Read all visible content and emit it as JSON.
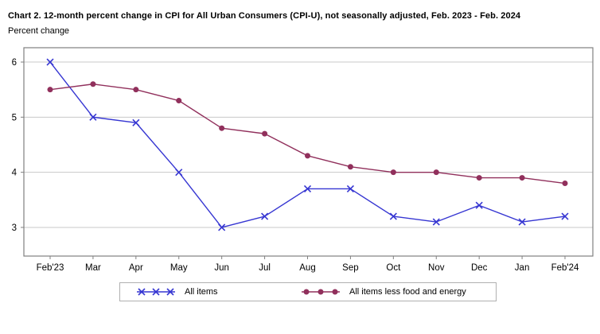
{
  "title": "Chart 2. 12-month percent change in CPI for All Urban Consumers (CPI-U), not seasonally adjusted, Feb. 2023 - Feb. 2024",
  "subtitle": "Percent change",
  "colors": {
    "all_items_line": "#3636d2",
    "core_line": "#91305c",
    "gridline": "#c8c8c8",
    "plot_border": "#808080",
    "legend_border": "#b0b0b0",
    "text": "#000000",
    "background": "#ffffff"
  },
  "chart_data": {
    "type": "line",
    "title": "Chart 2. 12-month percent change in CPI for All Urban Consumers (CPI-U), not seasonally adjusted, Feb. 2023 - Feb. 2024",
    "xlabel": "",
    "ylabel": "Percent change",
    "categories": [
      "Feb'23",
      "Mar",
      "Apr",
      "May",
      "Jun",
      "Jul",
      "Aug",
      "Sep",
      "Oct",
      "Nov",
      "Dec",
      "Jan",
      "Feb'24"
    ],
    "series": [
      {
        "name": "All items",
        "marker": "x",
        "color": "#3636d2",
        "values": [
          6.0,
          5.0,
          4.9,
          4.0,
          3.0,
          3.2,
          3.7,
          3.7,
          3.2,
          3.1,
          3.4,
          3.1,
          3.2
        ]
      },
      {
        "name": "All items less food and energy",
        "marker": "circle",
        "color": "#91305c",
        "values": [
          5.5,
          5.6,
          5.5,
          5.3,
          4.8,
          4.7,
          4.3,
          4.1,
          4.0,
          4.0,
          3.9,
          3.9,
          3.8
        ]
      }
    ],
    "yticks": [
      3,
      4,
      5,
      6
    ],
    "ylim": [
      2.48,
      6.26
    ],
    "grid": "horizontal",
    "legend_position": "bottom"
  }
}
